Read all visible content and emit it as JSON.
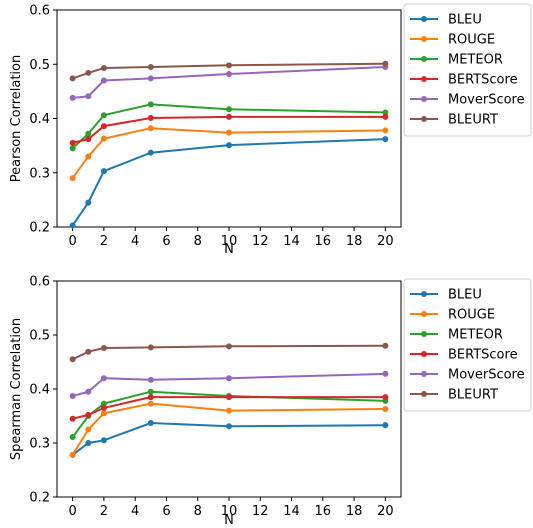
{
  "chart_data": [
    {
      "type": "line",
      "title": "",
      "xlabel": "N",
      "ylabel": "Pearson Correlation",
      "x": [
        0,
        1,
        2,
        5,
        10,
        20
      ],
      "xlim": [
        -1,
        21
      ],
      "ylim": [
        0.2,
        0.6
      ],
      "xticks": [
        0,
        2,
        4,
        6,
        8,
        10,
        12,
        14,
        16,
        18,
        20
      ],
      "yticks": [
        0.2,
        0.3,
        0.4,
        0.5,
        0.6
      ],
      "grid": false,
      "legend_position": "outside-right",
      "series": [
        {
          "name": "BLEU",
          "color": "#1f77b4",
          "values": [
            0.203,
            0.245,
            0.303,
            0.337,
            0.351,
            0.362
          ]
        },
        {
          "name": "ROUGE",
          "color": "#ff7f0e",
          "values": [
            0.29,
            0.33,
            0.363,
            0.382,
            0.374,
            0.378
          ]
        },
        {
          "name": "METEOR",
          "color": "#2ca02c",
          "values": [
            0.345,
            0.372,
            0.406,
            0.426,
            0.417,
            0.411
          ]
        },
        {
          "name": "BERTScore",
          "color": "#d62728",
          "values": [
            0.355,
            0.362,
            0.386,
            0.401,
            0.403,
            0.403
          ]
        },
        {
          "name": "MoverScore",
          "color": "#9467bd",
          "values": [
            0.438,
            0.441,
            0.47,
            0.474,
            0.482,
            0.495
          ]
        },
        {
          "name": "BLEURT",
          "color": "#8c564b",
          "values": [
            0.474,
            0.484,
            0.493,
            0.495,
            0.498,
            0.501
          ]
        }
      ]
    },
    {
      "type": "line",
      "title": "",
      "xlabel": "N",
      "ylabel": "Spearman Correlation",
      "x": [
        0,
        1,
        2,
        5,
        10,
        20
      ],
      "xlim": [
        -1,
        21
      ],
      "ylim": [
        0.2,
        0.6
      ],
      "xticks": [
        0,
        2,
        4,
        6,
        8,
        10,
        12,
        14,
        16,
        18,
        20
      ],
      "yticks": [
        0.2,
        0.3,
        0.4,
        0.5,
        0.6
      ],
      "grid": false,
      "legend_position": "outside-right",
      "series": [
        {
          "name": "BLEU",
          "color": "#1f77b4",
          "values": [
            0.278,
            0.3,
            0.305,
            0.337,
            0.331,
            0.333
          ]
        },
        {
          "name": "ROUGE",
          "color": "#ff7f0e",
          "values": [
            0.278,
            0.325,
            0.355,
            0.373,
            0.36,
            0.363
          ]
        },
        {
          "name": "METEOR",
          "color": "#2ca02c",
          "values": [
            0.311,
            0.35,
            0.373,
            0.395,
            0.387,
            0.378
          ]
        },
        {
          "name": "BERTScore",
          "color": "#d62728",
          "values": [
            0.345,
            0.352,
            0.365,
            0.385,
            0.385,
            0.385
          ]
        },
        {
          "name": "MoverScore",
          "color": "#9467bd",
          "values": [
            0.387,
            0.395,
            0.42,
            0.417,
            0.42,
            0.428
          ]
        },
        {
          "name": "BLEURT",
          "color": "#8c564b",
          "values": [
            0.455,
            0.469,
            0.476,
            0.477,
            0.479,
            0.48
          ]
        }
      ]
    }
  ]
}
